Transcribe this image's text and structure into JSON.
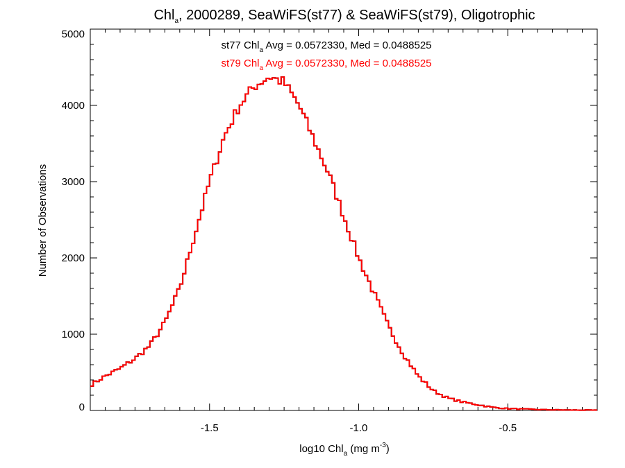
{
  "chart_data": {
    "type": "line",
    "drawstyle": "steps",
    "title": {
      "prefix": "Chl",
      "sub": "a",
      "rest": ", 2000289, SeaWiFS(st77) & SeaWiFS(st79), Oligotrophic"
    },
    "xlabel": {
      "prefix": "log10 Chl",
      "sub": "a",
      "mid": " (mg m",
      "sup": "-3",
      "end": ")"
    },
    "ylabel": "Number of Observations",
    "xlim": [
      -1.9,
      -0.2
    ],
    "ylim": [
      0,
      5000
    ],
    "x_ticks": [
      -1.5,
      -1.0,
      -0.5
    ],
    "x_tick_labels": [
      "-1.5",
      "-1.0",
      "-0.5"
    ],
    "y_ticks": [
      0,
      1000,
      2000,
      3000,
      4000,
      5000
    ],
    "y_tick_labels": [
      "0",
      "1000",
      "2000",
      "3000",
      "4000",
      "5000"
    ],
    "grid": false,
    "annotations": [
      {
        "series": "st77",
        "label": "st77 Chl",
        "sub": "a",
        "text": " Avg = 0.0572330, Med = 0.0488525",
        "color": "#000000"
      },
      {
        "series": "st79",
        "label": "st79 Chl",
        "sub": "a",
        "text": " Avg = 0.0572330, Med = 0.0488525",
        "color": "#ff0000"
      }
    ],
    "series": [
      {
        "name": "st77",
        "color": "#000000"
      },
      {
        "name": "st79",
        "color": "#ff0000"
      }
    ],
    "x": [
      -1.9,
      -1.85,
      -1.8,
      -1.75,
      -1.7,
      -1.65,
      -1.6,
      -1.55,
      -1.5,
      -1.45,
      -1.4,
      -1.35,
      -1.3,
      -1.25,
      -1.2,
      -1.15,
      -1.1,
      -1.05,
      -1.0,
      -0.95,
      -0.9,
      -0.85,
      -0.8,
      -0.75,
      -0.7,
      -0.65,
      -0.6,
      -0.55,
      -0.5,
      -0.45,
      -0.4,
      -0.35,
      -0.3,
      -0.25,
      -0.2
    ],
    "values": [
      330,
      450,
      550,
      680,
      850,
      1150,
      1600,
      2300,
      3000,
      3600,
      4000,
      4250,
      4380,
      4300,
      4000,
      3550,
      3100,
      2550,
      2000,
      1550,
      1100,
      740,
      450,
      260,
      160,
      110,
      75,
      40,
      25,
      18,
      12,
      8,
      6,
      5,
      4
    ]
  }
}
